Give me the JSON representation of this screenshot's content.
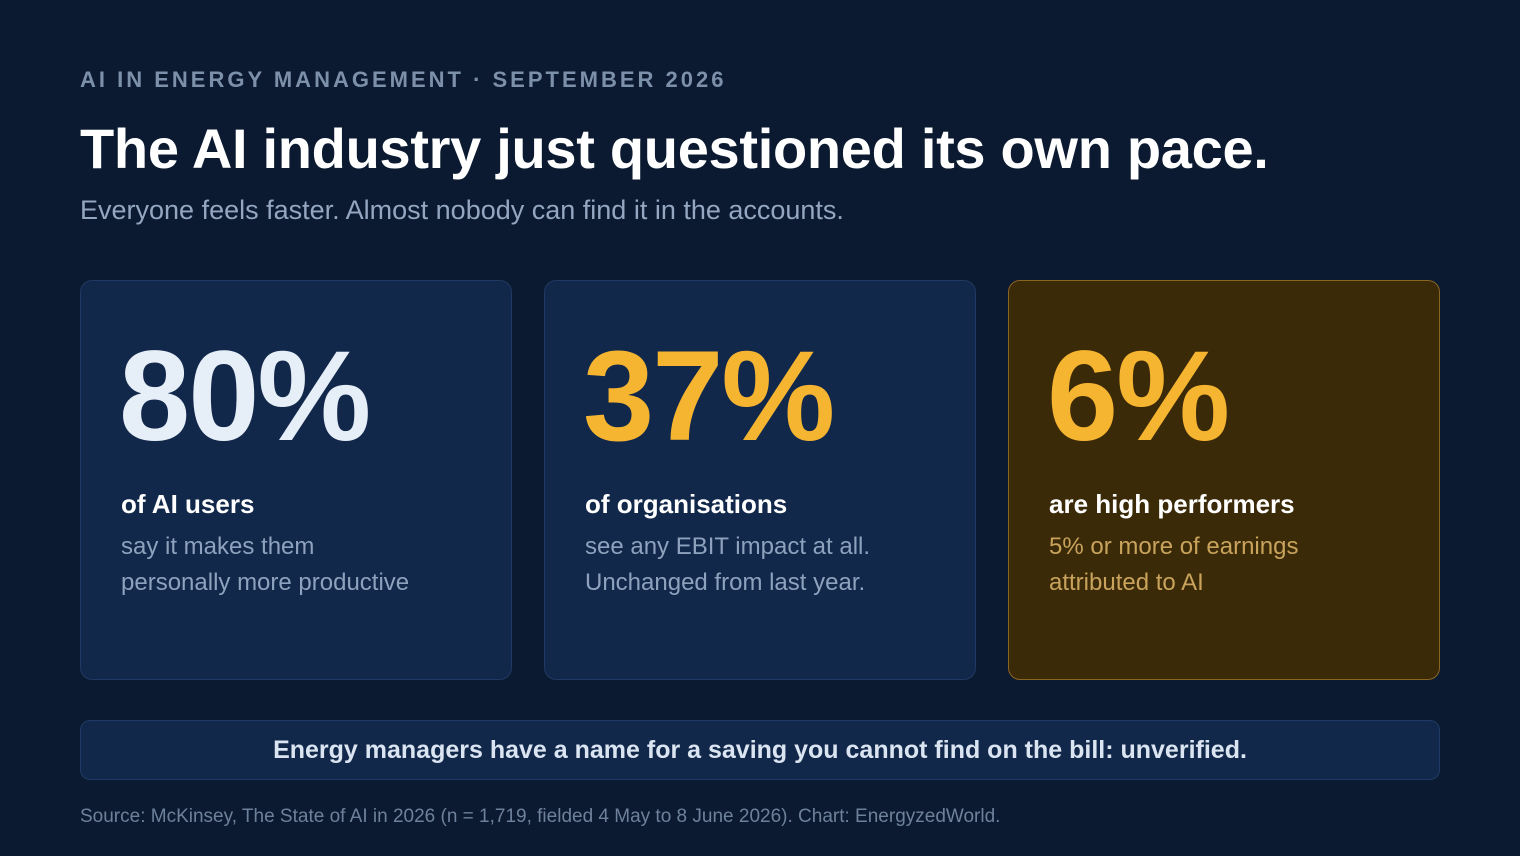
{
  "kicker": "AI IN ENERGY MANAGEMENT · SEPTEMBER 2026",
  "headline": "The AI industry just questioned its own pace.",
  "subhead": "Everyone feels faster. Almost nobody can find it in the accounts.",
  "cards": [
    {
      "value": "80%",
      "label": "of AI users",
      "desc_lines": [
        "say it makes them",
        "personally more productive"
      ],
      "value_color": "#e6eef8"
    },
    {
      "value": "37%",
      "label": "of organisations",
      "desc_lines": [
        "see any EBIT impact at all.",
        "Unchanged from last year."
      ],
      "value_color": "#f6b531"
    },
    {
      "value": "6%",
      "label": "are high performers",
      "desc_lines": [
        "5% or more of earnings",
        "attributed to AI"
      ],
      "value_color": "#f6b531",
      "highlight": true
    }
  ],
  "banner": "Energy managers have a name for a saving you cannot find on the bill: unverified.",
  "source": "Source: McKinsey, The State of AI in 2026 (n = 1,719, fielded 4 May to 8 June 2026). Chart: EnergyzedWorld.",
  "colors": {
    "background": "#0b1a30",
    "card": "#11284b",
    "highlight_card": "#3b2a08",
    "accent": "#f6b531"
  }
}
